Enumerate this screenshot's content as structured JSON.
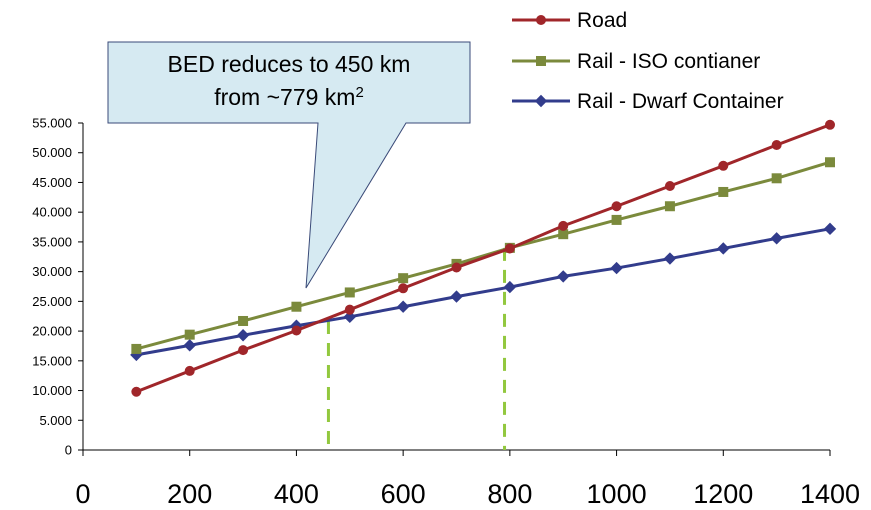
{
  "chart_data": {
    "type": "line",
    "x": [
      100,
      200,
      300,
      400,
      500,
      600,
      700,
      800,
      900,
      1000,
      1100,
      1200,
      1300,
      1400
    ],
    "xlim": [
      0,
      1400
    ],
    "ylim": [
      0,
      55000
    ],
    "x_ticks": [
      {
        "value": 0,
        "label": "0"
      },
      {
        "value": 200,
        "label": "200"
      },
      {
        "value": 400,
        "label": "400"
      },
      {
        "value": 600,
        "label": "600"
      },
      {
        "value": 800,
        "label": "800"
      },
      {
        "value": 1000,
        "label": "1000"
      },
      {
        "value": 1200,
        "label": "1200"
      },
      {
        "value": 1400,
        "label": "1400"
      }
    ],
    "y_ticks": [
      {
        "value": 0,
        "label": "0"
      },
      {
        "value": 5000,
        "label": "5.000"
      },
      {
        "value": 10000,
        "label": "10.000"
      },
      {
        "value": 15000,
        "label": "15.000"
      },
      {
        "value": 20000,
        "label": "20.000"
      },
      {
        "value": 25000,
        "label": "25.000"
      },
      {
        "value": 30000,
        "label": "30.000"
      },
      {
        "value": 35000,
        "label": "35.000"
      },
      {
        "value": 40000,
        "label": "40.000"
      },
      {
        "value": 45000,
        "label": "45.000"
      },
      {
        "value": 50000,
        "label": "50.000"
      },
      {
        "value": 55000,
        "label": "55.000"
      }
    ],
    "series": [
      {
        "name": "Road",
        "color": "#A0262A",
        "marker": "circle",
        "values": [
          9800,
          13300,
          16800,
          20100,
          23600,
          27200,
          30700,
          33900,
          37700,
          41000,
          44400,
          47800,
          51300,
          54700
        ]
      },
      {
        "name": "Rail - ISO contianer",
        "color": "#7B8A3C",
        "marker": "square",
        "values": [
          17000,
          19400,
          21700,
          24100,
          26500,
          28900,
          31300,
          34000,
          36300,
          38700,
          41000,
          43400,
          45700,
          48400
        ]
      },
      {
        "name": "Rail - Dwarf Container",
        "color": "#323C8C",
        "marker": "diamond",
        "values": [
          16000,
          17600,
          19300,
          20900,
          22400,
          24100,
          25800,
          27400,
          29200,
          30600,
          32200,
          33900,
          35600,
          37200
        ]
      }
    ],
    "reference_lines": [
      {
        "type": "vertical-dashed",
        "x": 460,
        "y_top": 21700,
        "color": "#92C83E"
      },
      {
        "type": "vertical-dashed",
        "x": 790,
        "y_top": 34000,
        "color": "#92C83E"
      }
    ],
    "legend_position": "top-right",
    "grid": false,
    "annotation": {
      "line1": "BED reduces to 450 km",
      "line2_prefix": "from ~779 km",
      "line2_sup": "2",
      "fill": "#D6EAF2",
      "stroke": "#3A4A78"
    }
  }
}
